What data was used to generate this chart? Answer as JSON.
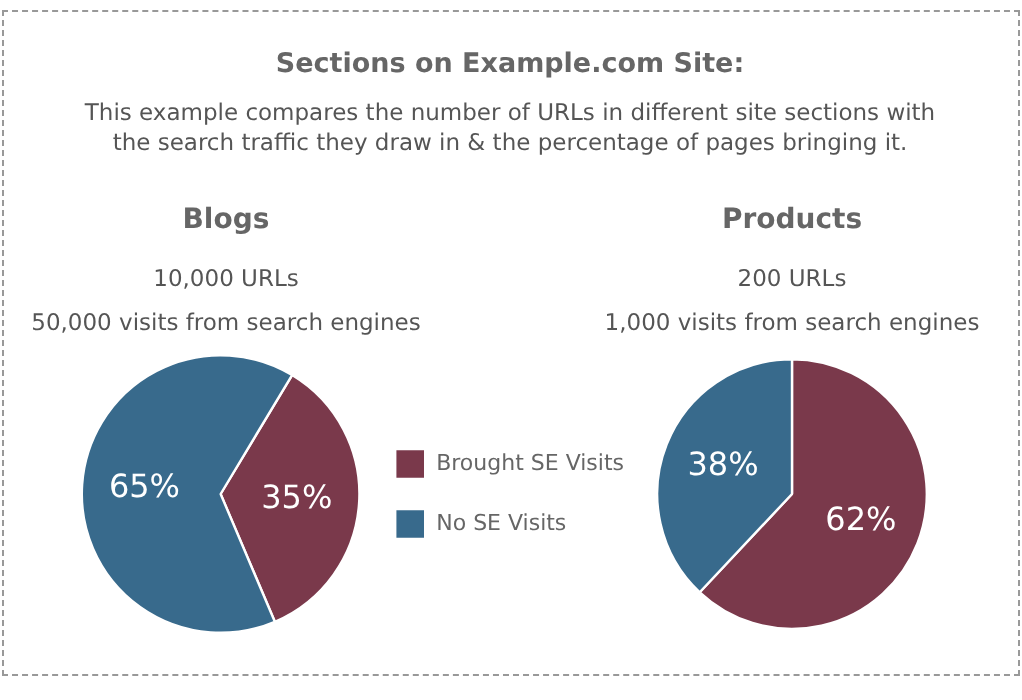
{
  "chart_data": [
    {
      "type": "other",
      "title": "Sections on Example.com Site:",
      "subtitle": "This example compares the number of URLs in different site sections with the search traffic they draw in & the percentage of pages bringing it."
    },
    {
      "type": "pie",
      "title": "Blogs",
      "subtitle": "10,000 URLs",
      "annotations": [
        "50,000 visits from search engines"
      ],
      "categories": [
        "Brought SE Visits",
        "No SE Visits"
      ],
      "values": [
        35,
        65
      ],
      "colors": [
        "#7a394b",
        "#386a8c"
      ],
      "value_labels": [
        "35%",
        "65%"
      ],
      "legend": "right"
    },
    {
      "type": "pie",
      "title": "Products",
      "subtitle": "200 URLs",
      "annotations": [
        "1,000 visits from search engines"
      ],
      "categories": [
        null,
        null
      ],
      "values": [
        62,
        38
      ],
      "colors": [
        "#7a394b",
        "#386a8c"
      ],
      "value_labels": [
        "62%",
        "38%"
      ]
    }
  ]
}
